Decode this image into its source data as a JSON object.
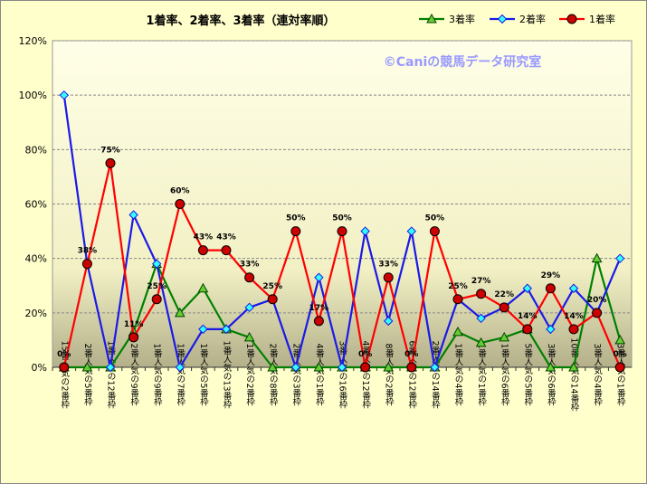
{
  "chart_data": {
    "type": "line",
    "title": "1着率、2着率、3着率（連対率順）",
    "watermark": "©Caniの競馬データ研究室",
    "ylim": [
      0,
      120
    ],
    "yticks": [
      "0%",
      "20%",
      "40%",
      "60%",
      "80%",
      "100%",
      "120%"
    ],
    "categories": [
      "15番人気の2番枠",
      "2番人気の5番枠",
      "1番人気の12番枠",
      "2番人気の9番枠",
      "1番人気の9番枠",
      "1番人気の7番枠",
      "1番人気の5番枠",
      "1番人気の13番枠",
      "1番人気の2番枠",
      "2番人気の8番枠",
      "2番人気の3番枠",
      "4番人気の1番枠",
      "3番人気の16番枠",
      "4番人気の12番枠",
      "8番人気の2番枠",
      "6番人気の12番枠",
      "2番人気の14番枠",
      "1番人気の4番枠",
      "1番人気の1番枠",
      "1番人気の6番枠",
      "5番人気の5番枠",
      "3番人気の6番枠",
      "10番人気の14番枠",
      "3番人気の4番枠",
      "3番人気の1番枠"
    ],
    "series": [
      {
        "name": "3着率",
        "color": "#008000",
        "marker_fill": "#66CC33",
        "marker": "triangle",
        "values": [
          0,
          0,
          0,
          13,
          38,
          20,
          29,
          14,
          11,
          0,
          0,
          0,
          0,
          0,
          0,
          0,
          0,
          13,
          9,
          11,
          14,
          0,
          0,
          40,
          10
        ]
      },
      {
        "name": "2着率",
        "color": "#1A1AE6",
        "marker_fill": "#33FFFF",
        "marker": "diamond",
        "values": [
          100,
          38,
          0,
          56,
          38,
          0,
          14,
          14,
          22,
          25,
          0,
          33,
          0,
          50,
          17,
          50,
          0,
          25,
          18,
          22,
          29,
          14,
          29,
          20,
          40
        ]
      },
      {
        "name": "1着率",
        "color": "#FF0000",
        "marker_fill": "#CC0000",
        "marker": "circle",
        "values": [
          0,
          38,
          75,
          11,
          25,
          60,
          43,
          43,
          33,
          25,
          50,
          17,
          50,
          0,
          33,
          0,
          50,
          25,
          27,
          22,
          14,
          29,
          14,
          20,
          0
        ]
      }
    ],
    "data_labels": [
      "0%",
      "38%",
      "75%",
      "11%",
      "25%",
      "60%",
      "43%",
      "43%",
      "33%",
      "25%",
      "50%",
      "17%",
      "50%",
      "0%",
      "33%",
      "0%",
      "50%",
      "25%",
      "27%",
      "22%",
      "14%",
      "29%",
      "14%",
      "20%",
      "0%"
    ],
    "legend_position": "top-right",
    "grid": true
  }
}
